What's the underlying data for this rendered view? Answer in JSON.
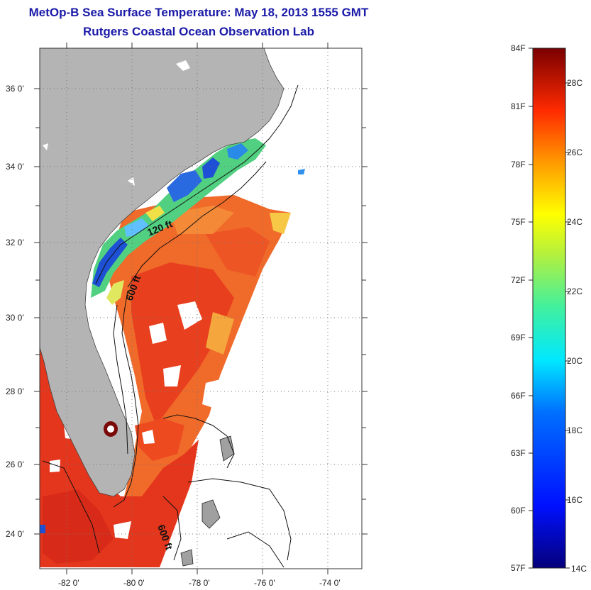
{
  "titles": {
    "line1": "MetOp-B Sea Surface Temperature:  May 18, 2013 1555 GMT",
    "line2": "Rutgers Coastal Ocean Observation Lab"
  },
  "map": {
    "lon_ticks": [
      "-82 0'",
      "-80 0'",
      "-78 0'",
      "-76 0'",
      "-74 0'"
    ],
    "lat_ticks": [
      "36 0'",
      "34 0'",
      "32 0'",
      "30 0'",
      "28 0'",
      "26 0'",
      "24 0'"
    ],
    "contour_labels": [
      "120 ft",
      "600 ft",
      "600 ft"
    ],
    "colors": {
      "land": "#b4b4b4",
      "cold": "#1e50d6",
      "warm": "#e23b1c"
    }
  },
  "colorbar": {
    "fahrenheit_labels": [
      "84F",
      "81F",
      "78F",
      "75F",
      "72F",
      "69F",
      "66F",
      "63F",
      "60F",
      "57F"
    ],
    "celsius_labels": [
      "28C",
      "26C",
      "24C",
      "22C",
      "20C",
      "18C",
      "16C",
      "14C"
    ]
  }
}
